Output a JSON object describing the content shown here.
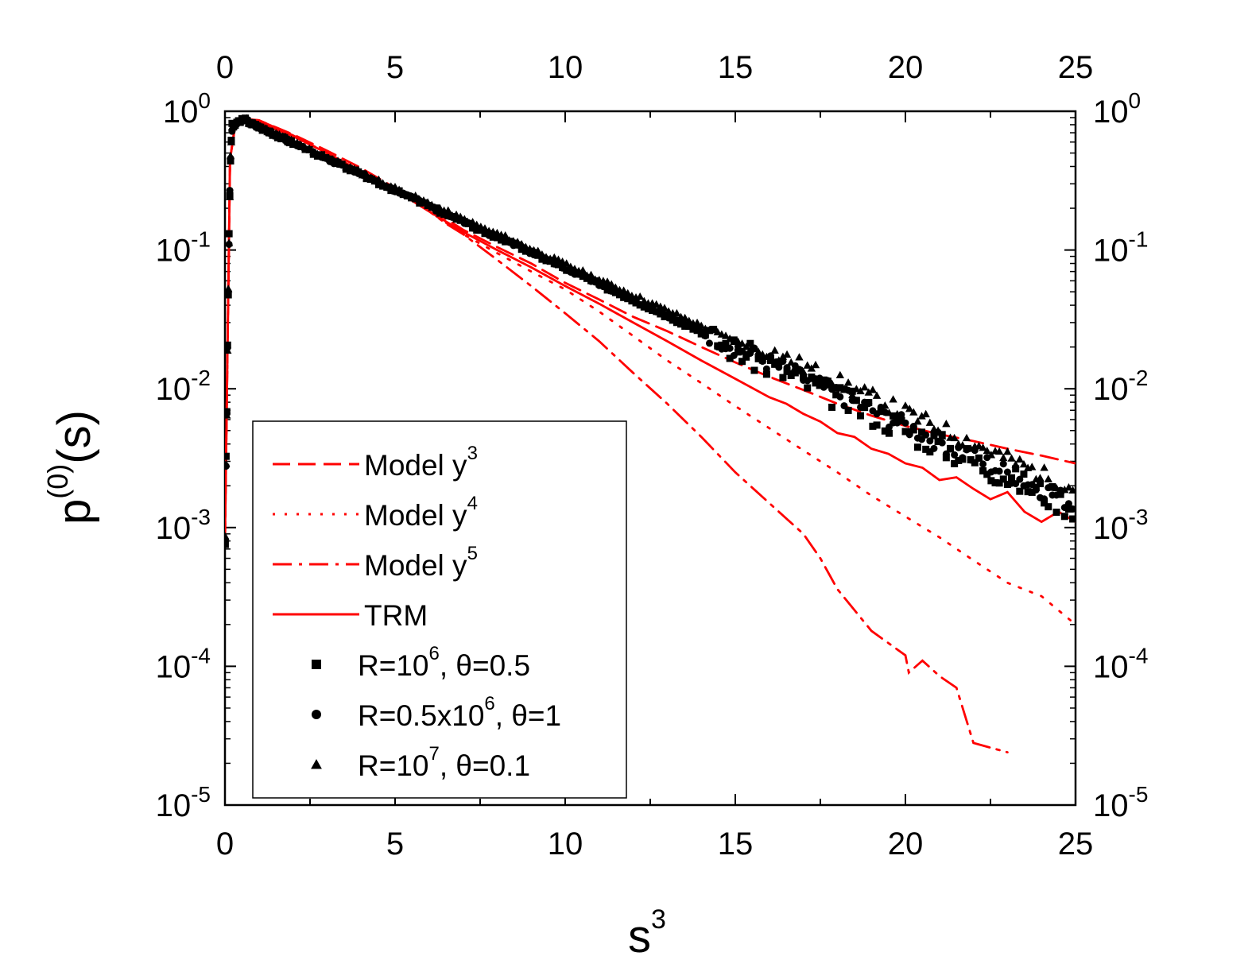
{
  "chart_data": {
    "type": "scatter",
    "xlabel": "s",
    "xlabel_sup": "3",
    "ylabel": "p",
    "ylabel_sup": "(0)",
    "ylabel_suffix": "(s)",
    "xlim": [
      0,
      25
    ],
    "ylim_log10": [
      -5,
      0
    ],
    "x_ticks": [
      "0",
      "5",
      "10",
      "15",
      "20",
      "25"
    ],
    "y_ticks": [
      {
        "base": "10",
        "exp": "0"
      },
      {
        "base": "10",
        "exp": "-1"
      },
      {
        "base": "10",
        "exp": "-2"
      },
      {
        "base": "10",
        "exp": "-3"
      },
      {
        "base": "10",
        "exp": "-4"
      },
      {
        "base": "10",
        "exp": "-5"
      }
    ],
    "colors": {
      "model": "#ff0000",
      "data": "#000000",
      "axis": "#000000"
    },
    "series": [
      {
        "name": "Model y",
        "sup": "3",
        "style": "dashed",
        "kind": "line",
        "x": [
          0,
          0.15,
          0.3,
          0.6,
          1,
          2,
          3,
          4,
          5,
          6,
          7,
          8,
          9,
          10,
          11,
          12,
          13,
          14,
          15,
          16,
          17,
          18,
          19,
          20,
          21,
          22,
          23,
          24,
          25
        ],
        "y": [
          0.0008,
          0.45,
          0.8,
          0.88,
          0.86,
          0.68,
          0.52,
          0.39,
          0.28,
          0.2,
          0.14,
          0.105,
          0.08,
          0.058,
          0.044,
          0.033,
          0.026,
          0.02,
          0.0155,
          0.0122,
          0.0098,
          0.0078,
          0.0064,
          0.0054,
          0.0047,
          0.0042,
          0.0037,
          0.0033,
          0.0029
        ]
      },
      {
        "name": "Model y",
        "sup": "4",
        "style": "dotted",
        "kind": "line",
        "x": [
          0,
          0.15,
          0.3,
          0.6,
          1,
          2,
          3,
          4,
          5,
          6,
          7,
          8,
          9,
          10,
          11,
          12,
          13,
          14,
          15,
          16,
          17,
          18,
          19,
          20,
          21,
          22,
          23,
          24,
          25
        ],
        "y": [
          0.0008,
          0.45,
          0.8,
          0.88,
          0.86,
          0.67,
          0.5,
          0.37,
          0.27,
          0.19,
          0.13,
          0.095,
          0.07,
          0.052,
          0.036,
          0.024,
          0.016,
          0.011,
          0.0075,
          0.0052,
          0.0036,
          0.0025,
          0.0017,
          0.0012,
          0.00085,
          0.00058,
          0.0004,
          0.00032,
          0.0002
        ]
      },
      {
        "name": "Model y",
        "sup": "5",
        "style": "dashdot",
        "kind": "line",
        "x": [
          0,
          0.15,
          0.3,
          0.6,
          1,
          2,
          3,
          4,
          5,
          6,
          6.5,
          7,
          8,
          9,
          10,
          11,
          12,
          13,
          14,
          15,
          16,
          17,
          17.5,
          18,
          19,
          20,
          20.1,
          20.5,
          21,
          21.5,
          22,
          23
        ],
        "y": [
          0.0008,
          0.45,
          0.8,
          0.88,
          0.86,
          0.67,
          0.5,
          0.37,
          0.27,
          0.19,
          0.155,
          0.13,
          0.085,
          0.055,
          0.035,
          0.022,
          0.013,
          0.0078,
          0.0045,
          0.0025,
          0.0015,
          0.0009,
          0.0006,
          0.00036,
          0.00018,
          0.00012,
          9e-05,
          0.00011,
          8.5e-05,
          7e-05,
          2.8e-05,
          2.4e-05
        ]
      },
      {
        "name": "TRM",
        "sup": "",
        "style": "solid",
        "kind": "line",
        "x": [
          0,
          0.15,
          0.3,
          0.6,
          1,
          2,
          3,
          4,
          5,
          6,
          7,
          8,
          9,
          10,
          11,
          12,
          13,
          14,
          15,
          16,
          16.5,
          17,
          17.5,
          18,
          18.5,
          19,
          19.5,
          20,
          20.5,
          21,
          21.5,
          22,
          22.5,
          23,
          23.5,
          24,
          24.5,
          25
        ],
        "y": [
          0.0008,
          0.45,
          0.78,
          0.86,
          0.83,
          0.66,
          0.5,
          0.37,
          0.27,
          0.19,
          0.135,
          0.1,
          0.075,
          0.055,
          0.041,
          0.03,
          0.022,
          0.016,
          0.0118,
          0.0087,
          0.0078,
          0.0066,
          0.0058,
          0.0048,
          0.0045,
          0.0037,
          0.0034,
          0.0029,
          0.0027,
          0.0022,
          0.0023,
          0.0019,
          0.0016,
          0.0018,
          0.0013,
          0.0011,
          0.0013,
          0.0011
        ]
      },
      {
        "name": "R=10",
        "sup": "6",
        "tail": ", θ=0.5",
        "style": "square",
        "kind": "marker",
        "a": 0.83,
        "b": 0.263,
        "tail_start": 14,
        "scatter": 0.22,
        "offset": 0.97,
        "seed": 3
      },
      {
        "name": "R=0.5x10",
        "sup": "6",
        "tail": ", θ=1",
        "style": "circle",
        "kind": "marker",
        "a": 0.83,
        "b": 0.262,
        "tail_start": 14,
        "scatter": 0.16,
        "offset": 1.0,
        "seed": 7
      },
      {
        "name": "R=10",
        "sup": "7",
        "tail": ", θ=0.1",
        "style": "triangle",
        "kind": "marker",
        "a": 0.84,
        "b": 0.256,
        "tail_start": 16,
        "scatter": 0.14,
        "offset": 1.1,
        "seed": 11
      }
    ]
  }
}
